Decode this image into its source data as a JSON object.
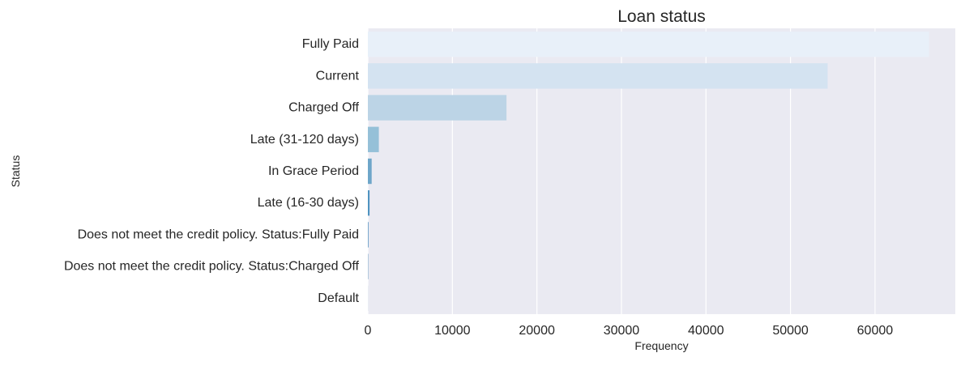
{
  "chart_data": {
    "type": "bar",
    "orientation": "horizontal",
    "title": "Loan status",
    "xlabel": "Frequency",
    "ylabel": "Status",
    "categories": [
      "Fully Paid",
      "Current",
      "Charged Off",
      "Late (31-120 days)",
      "In Grace Period",
      "Late (16-30 days)",
      "Does not meet the credit policy. Status:Fully Paid",
      "Does not meet the credit policy. Status:Charged Off",
      "Default"
    ],
    "values": [
      66400,
      54400,
      16400,
      1300,
      450,
      200,
      60,
      30,
      5
    ],
    "colors": [
      "#e8f0f9",
      "#d4e3f1",
      "#bcd4e6",
      "#95c0d8",
      "#6ea6c9",
      "#4f93c0",
      "#3a80b6",
      "#2a6ea6",
      "#1c5c95"
    ],
    "xlim": [
      0,
      69500
    ],
    "xticks": [
      0,
      10000,
      20000,
      30000,
      40000,
      50000,
      60000
    ],
    "xtick_labels": [
      "0",
      "10000",
      "20000",
      "30000",
      "40000",
      "50000",
      "60000"
    ],
    "grid": true,
    "background_color": "#eaeaf2",
    "grid_color": "#ffffff"
  }
}
